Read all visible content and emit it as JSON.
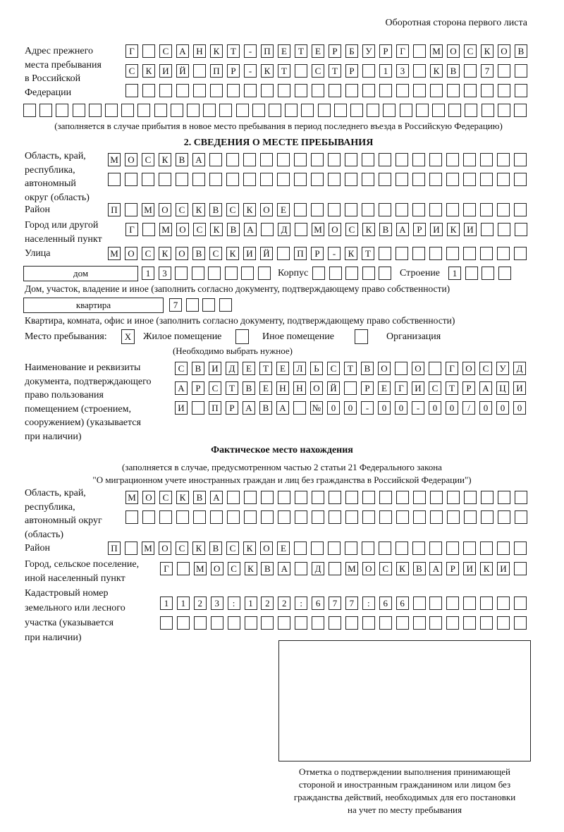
{
  "header": "Оборотная сторона первого листа",
  "prev_address": {
    "label": [
      "Адрес прежнего",
      "места пребывания",
      "в Российской",
      "Федерации"
    ],
    "rows": [
      [
        "Г",
        "",
        "С",
        "А",
        "Н",
        "К",
        "Т",
        "-",
        "П",
        "Е",
        "Т",
        "Е",
        "Р",
        "Б",
        "У",
        "Р",
        "Г",
        "",
        "М",
        "О",
        "С",
        "К",
        "О",
        "В"
      ],
      [
        "С",
        "К",
        "И",
        "Й",
        "",
        "П",
        "Р",
        "-",
        "К",
        "Т",
        "",
        "С",
        "Т",
        "Р",
        "",
        "1",
        "3",
        "",
        "К",
        "В",
        "",
        "7",
        "",
        ""
      ],
      [
        "",
        "",
        "",
        "",
        "",
        "",
        "",
        "",
        "",
        "",
        "",
        "",
        "",
        "",
        "",
        "",
        "",
        "",
        "",
        "",
        "",
        "",
        "",
        ""
      ]
    ],
    "long_row_cells": 31,
    "note": "(заполняется в случае прибытия в новое место пребывания в период последнего въезда в Российскую Федерацию)"
  },
  "section2": {
    "title": "2. СВЕДЕНИЯ О МЕСТЕ ПРЕБЫВАНИЯ",
    "region_label": [
      "Область, край,",
      "республика,",
      "автономный",
      "округ (область)"
    ],
    "region_rows": [
      [
        "М",
        "О",
        "С",
        "К",
        "В",
        "А",
        "",
        "",
        "",
        "",
        "",
        "",
        "",
        "",
        "",
        "",
        "",
        "",
        "",
        "",
        "",
        "",
        "",
        "",
        ""
      ],
      [
        "",
        "",
        "",
        "",
        "",
        "",
        "",
        "",
        "",
        "",
        "",
        "",
        "",
        "",
        "",
        "",
        "",
        "",
        "",
        "",
        "",
        "",
        "",
        "",
        ""
      ]
    ],
    "district_label": "Район",
    "district": [
      "П",
      "",
      "М",
      "О",
      "С",
      "К",
      "В",
      "С",
      "К",
      "О",
      "Е",
      "",
      "",
      "",
      "",
      "",
      "",
      "",
      "",
      "",
      "",
      "",
      "",
      "",
      ""
    ],
    "city_label": [
      "Город или другой",
      "населенный пункт"
    ],
    "city": [
      "Г",
      "",
      "М",
      "О",
      "С",
      "К",
      "В",
      "А",
      "",
      "Д",
      "",
      "М",
      "О",
      "С",
      "К",
      "В",
      "А",
      "Р",
      "И",
      "К",
      "И",
      "",
      "",
      ""
    ],
    "street_label": "Улица",
    "street": [
      "М",
      "О",
      "С",
      "К",
      "О",
      "В",
      "С",
      "К",
      "И",
      "Й",
      "",
      "П",
      "Р",
      "-",
      "К",
      "Т",
      "",
      "",
      "",
      "",
      "",
      "",
      "",
      "",
      ""
    ],
    "house_type": "дом",
    "house": [
      "1",
      "3",
      "",
      "",
      "",
      "",
      "",
      ""
    ],
    "korpus_label": "Корпус",
    "korpus": [
      "",
      "",
      "",
      "",
      ""
    ],
    "building_label": "Строение",
    "building": [
      "1",
      "",
      "",
      ""
    ],
    "house_note": "Дом, участок, владение и иное (заполнить согласно документу, подтверждающему право собственности)",
    "flat_type": "квартира",
    "flat": [
      "7",
      "",
      "",
      ""
    ],
    "flat_note": "Квартира, комната, офис и иное (заполнить согласно документу, подтверждающему право собственности)",
    "stay_label": "Место пребывания:",
    "stay_options": [
      {
        "label": "Жилое помещение",
        "mark": "X"
      },
      {
        "label": "Иное помещение",
        "mark": ""
      },
      {
        "label": "Организация",
        "mark": ""
      }
    ],
    "stay_note": "(Необходимо выбрать нужное)",
    "doc_label": [
      "Наименование и реквизиты",
      "документа, подтверждающего",
      "право пользования",
      "помещением (строением,",
      "сооружением) (указывается",
      "при наличии)"
    ],
    "doc_rows": [
      [
        "С",
        "В",
        "И",
        "Д",
        "Е",
        "Т",
        "Е",
        "Л",
        "Ь",
        "С",
        "Т",
        "В",
        "О",
        "",
        "О",
        "",
        "Г",
        "О",
        "С",
        "У",
        "Д"
      ],
      [
        "А",
        "Р",
        "С",
        "Т",
        "В",
        "Е",
        "Н",
        "Н",
        "О",
        "Й",
        "",
        "Р",
        "Е",
        "Г",
        "И",
        "С",
        "Т",
        "Р",
        "А",
        "Ц",
        "И"
      ],
      [
        "И",
        "",
        "П",
        "Р",
        "А",
        "В",
        "А",
        "",
        "№",
        "0",
        "0",
        "-",
        "0",
        "0",
        "-",
        "0",
        "0",
        "/",
        "0",
        "0",
        "0"
      ]
    ]
  },
  "actual": {
    "title": "Фактическое место нахождения",
    "note": [
      "(заполняется в случае, предусмотренном частью 2 статьи 21 Федерального закона",
      "\"О миграционном учете иностранных граждан и лиц без гражданства в Российской Федерации\")"
    ],
    "region_label": [
      "Область, край,",
      "республика,",
      "автономный округ",
      "(область)"
    ],
    "region_rows": [
      [
        "М",
        "О",
        "С",
        "К",
        "В",
        "А",
        "",
        "",
        "",
        "",
        "",
        "",
        "",
        "",
        "",
        "",
        "",
        "",
        "",
        "",
        "",
        "",
        "",
        ""
      ],
      [
        "",
        "",
        "",
        "",
        "",
        "",
        "",
        "",
        "",
        "",
        "",
        "",
        "",
        "",
        "",
        "",
        "",
        "",
        "",
        "",
        "",
        "",
        "",
        ""
      ]
    ],
    "district_label": "Район",
    "district": [
      "П",
      "",
      "М",
      "О",
      "С",
      "К",
      "В",
      "С",
      "К",
      "О",
      "Е",
      "",
      "",
      "",
      "",
      "",
      "",
      "",
      "",
      "",
      "",
      "",
      "",
      "",
      ""
    ],
    "city_label": [
      "Город, сельское поселение,",
      "иной населенный пункт"
    ],
    "city": [
      "Г",
      "",
      "М",
      "О",
      "С",
      "К",
      "В",
      "А",
      "",
      "Д",
      "",
      "М",
      "О",
      "С",
      "К",
      "В",
      "А",
      "Р",
      "И",
      "К",
      "И",
      ""
    ],
    "cadastre_label": [
      "Кадастровый номер",
      "земельного или лесного",
      "участка (указывается",
      "при наличии)"
    ],
    "cadastre_rows": [
      [
        "1",
        "1",
        "2",
        "3",
        ":",
        "1",
        "2",
        "2",
        ":",
        "6",
        "7",
        "7",
        ":",
        "6",
        "6",
        "",
        "",
        "",
        "",
        "",
        "",
        ""
      ],
      [
        "",
        "",
        "",
        "",
        "",
        "",
        "",
        "",
        "",
        "",
        "",
        "",
        "",
        "",
        "",
        "",
        "",
        "",
        "",
        "",
        "",
        ""
      ]
    ]
  },
  "stamp_caption": [
    "Отметка о подтверждении выполнения принимающей",
    "стороной и иностранным гражданином или лицом без",
    "гражданства действий, необходимых для его постановки",
    "на учет по месту пребывания"
  ]
}
